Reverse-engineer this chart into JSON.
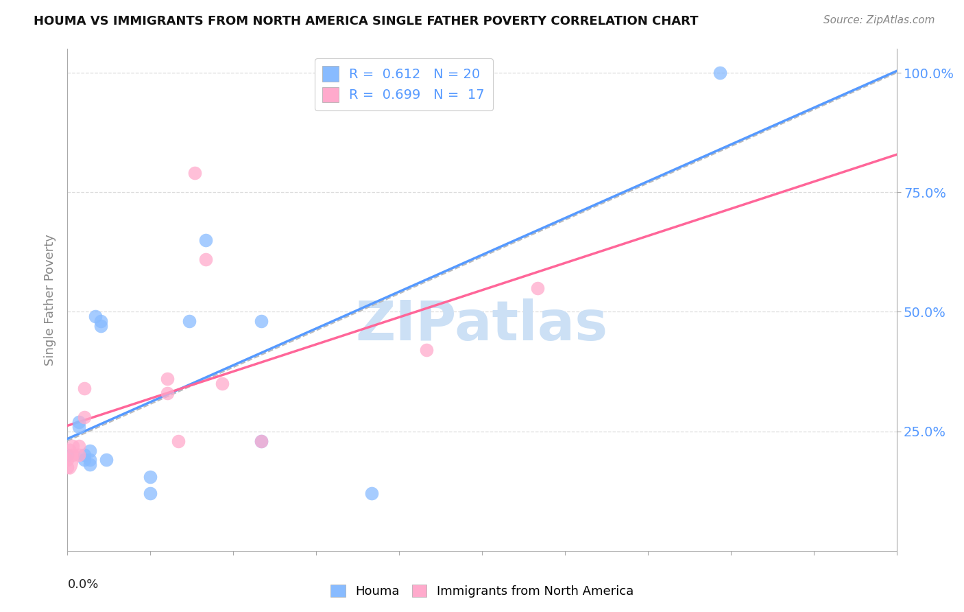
{
  "title": "HOUMA VS IMMIGRANTS FROM NORTH AMERICA SINGLE FATHER POVERTY CORRELATION CHART",
  "source": "Source: ZipAtlas.com",
  "houma_color": "#88bbff",
  "immigrants_color": "#ffaacc",
  "houma_label": "Houma",
  "immigrants_label": "Immigrants from North America",
  "houma_scatter": [
    [
      0.0,
      0.2
    ],
    [
      0.002,
      0.27
    ],
    [
      0.002,
      0.26
    ],
    [
      0.003,
      0.2
    ],
    [
      0.003,
      0.19
    ],
    [
      0.004,
      0.19
    ],
    [
      0.004,
      0.21
    ],
    [
      0.004,
      0.18
    ],
    [
      0.005,
      0.49
    ],
    [
      0.006,
      0.47
    ],
    [
      0.006,
      0.48
    ],
    [
      0.007,
      0.19
    ],
    [
      0.015,
      0.12
    ],
    [
      0.015,
      0.155
    ],
    [
      0.022,
      0.48
    ],
    [
      0.025,
      0.65
    ],
    [
      0.035,
      0.48
    ],
    [
      0.035,
      0.23
    ],
    [
      0.055,
      0.12
    ],
    [
      0.118,
      1.0
    ]
  ],
  "immigrants_scatter": [
    [
      0.0,
      0.19
    ],
    [
      0.0,
      0.175
    ],
    [
      0.001,
      0.22
    ],
    [
      0.001,
      0.2
    ],
    [
      0.002,
      0.22
    ],
    [
      0.002,
      0.2
    ],
    [
      0.003,
      0.28
    ],
    [
      0.003,
      0.34
    ],
    [
      0.018,
      0.36
    ],
    [
      0.018,
      0.33
    ],
    [
      0.02,
      0.23
    ],
    [
      0.023,
      0.79
    ],
    [
      0.025,
      0.61
    ],
    [
      0.028,
      0.35
    ],
    [
      0.035,
      0.23
    ],
    [
      0.065,
      0.42
    ],
    [
      0.085,
      0.55
    ]
  ],
  "houma_line_color": "#5599ff",
  "immigrants_line_color": "#ff6699",
  "diagonal_line_color": "#bbbbbb",
  "background_color": "#ffffff",
  "grid_color": "#dddddd",
  "xlim": [
    0.0,
    0.15
  ],
  "ylim": [
    0.0,
    1.05
  ],
  "ylabel": "Single Father Poverty",
  "ytick_labels": [
    "25.0%",
    "50.0%",
    "75.0%",
    "100.0%"
  ],
  "ytick_vals": [
    0.25,
    0.5,
    0.75,
    1.0
  ],
  "right_tick_color": "#5599ff"
}
